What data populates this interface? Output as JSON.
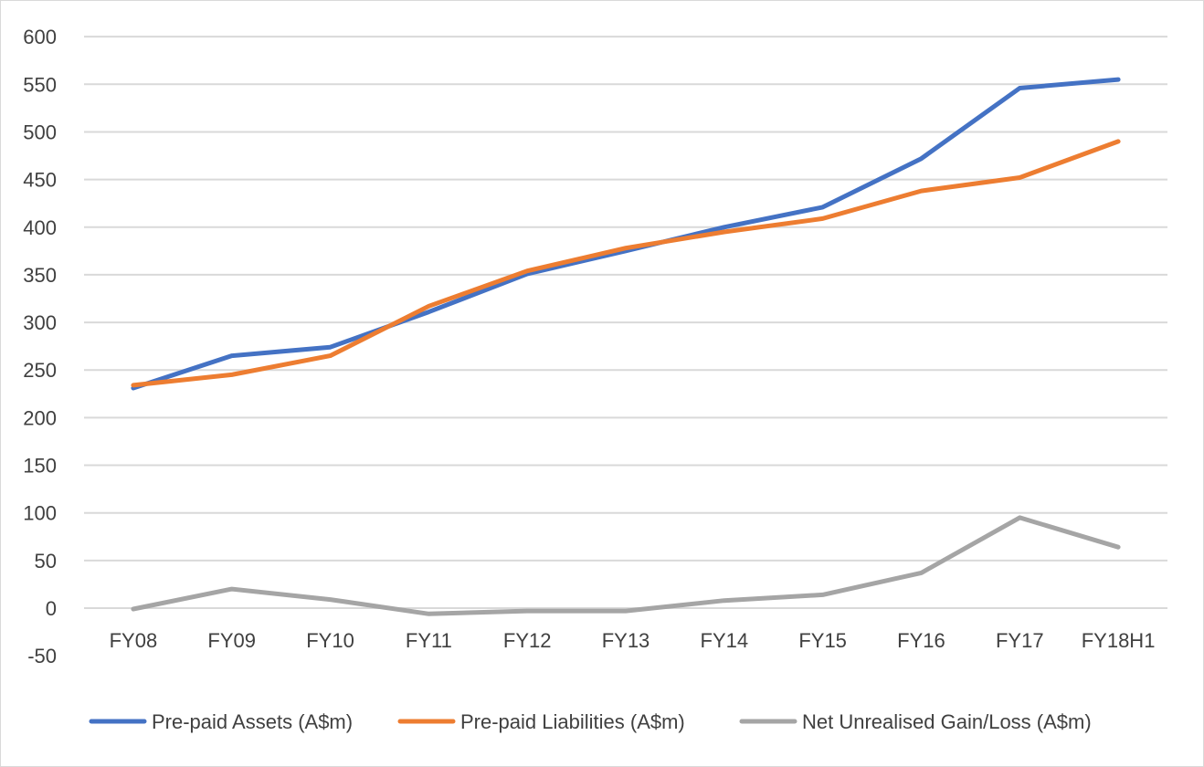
{
  "chart_data": {
    "type": "line",
    "title": "",
    "xlabel": "",
    "ylabel": "",
    "categories": [
      "FY08",
      "FY09",
      "FY10",
      "FY11",
      "FY12",
      "FY13",
      "FY14",
      "FY15",
      "FY16",
      "FY17",
      "FY18H1"
    ],
    "ylim": [
      -50,
      600
    ],
    "yticks": [
      "600",
      "550",
      "500",
      "450",
      "400",
      "350",
      "300",
      "250",
      "200",
      "150",
      "100",
      "50",
      "0",
      "-50"
    ],
    "grid": true,
    "legend_position": "bottom",
    "series": [
      {
        "name": "Pre-paid Assets (A$m)",
        "color": "#4472c4",
        "values": [
          231,
          265,
          274,
          311,
          351,
          375,
          400,
          421,
          472,
          546,
          555
        ]
      },
      {
        "name": "Pre-paid Liabilities (A$m)",
        "color": "#ed7d31",
        "values": [
          234,
          245,
          265,
          317,
          354,
          378,
          395,
          409,
          438,
          452,
          490
        ]
      },
      {
        "name": "Net Unrealised Gain/Loss (A$m)",
        "color": "#a5a5a5",
        "values": [
          -1,
          20,
          9,
          -6,
          -3,
          -3,
          8,
          14,
          37,
          95,
          64
        ]
      }
    ]
  }
}
